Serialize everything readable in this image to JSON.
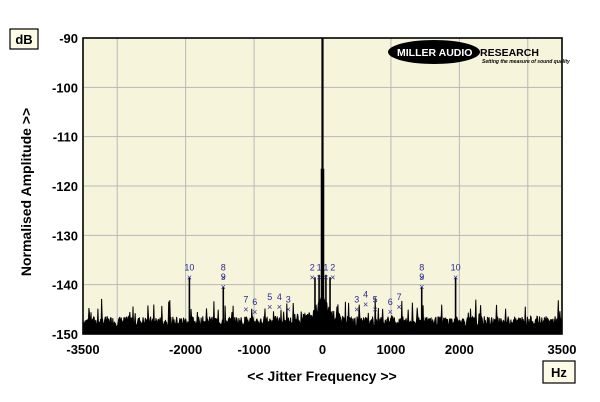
{
  "chart_data": {
    "type": "line",
    "title": "",
    "xlabel": "<< Jitter Frequency >>",
    "ylabel": "Normalised Amplitude >>",
    "y_unit": "dB",
    "x_unit": "Hz",
    "xlim": [
      -3500,
      3500
    ],
    "ylim": [
      -150,
      -90
    ],
    "x_ticks": [
      -3500,
      -2000,
      -1000,
      0,
      1000,
      2000,
      3500
    ],
    "x_tick_labels": [
      "-3500",
      "-2000",
      "-1000",
      "0",
      "1000",
      "2000",
      "3500"
    ],
    "y_ticks": [
      -90,
      -100,
      -110,
      -120,
      -130,
      -140,
      -150
    ],
    "y_tick_labels": [
      "-90",
      "-100",
      "-110",
      "-120",
      "-130",
      "-140",
      "-150"
    ],
    "grid": true,
    "background": "#f7f4dc",
    "trace_color": "#000000",
    "marker_color": "#2a2a9a",
    "noise_floor_db": -148,
    "peaks": [
      {
        "x": 0,
        "y": -90
      },
      {
        "x": -10,
        "y": -116.5
      },
      {
        "x": 10,
        "y": -116.5
      },
      {
        "x": -1945,
        "y": -138.5
      },
      {
        "x": 1945,
        "y": -138.5
      },
      {
        "x": -1450,
        "y": -140.5
      },
      {
        "x": 1450,
        "y": -140.5
      },
      {
        "x": -110,
        "y": -138.5
      },
      {
        "x": 110,
        "y": -138.5
      },
      {
        "x": -50,
        "y": -138
      },
      {
        "x": 50,
        "y": -138
      }
    ],
    "markers": [
      {
        "label": "10",
        "x": -1945,
        "y": -138.5
      },
      {
        "label": "8",
        "x": -1450,
        "y": -138.5
      },
      {
        "label": "9",
        "x": -1450,
        "y": -140.5
      },
      {
        "label": "7",
        "x": -1120,
        "y": -145
      },
      {
        "label": "6",
        "x": -990,
        "y": -145.5
      },
      {
        "label": "5",
        "x": -770,
        "y": -144.5
      },
      {
        "label": "4",
        "x": -630,
        "y": -144.5
      },
      {
        "label": "3",
        "x": -500,
        "y": -145
      },
      {
        "label": "2",
        "x": -150,
        "y": -138.5
      },
      {
        "label": "1",
        "x": -50,
        "y": -138.5
      },
      {
        "label": "1",
        "x": 50,
        "y": -138.5
      },
      {
        "label": "2",
        "x": 150,
        "y": -138.5
      },
      {
        "label": "3",
        "x": 500,
        "y": -145
      },
      {
        "label": "4",
        "x": 630,
        "y": -144
      },
      {
        "label": "5",
        "x": 770,
        "y": -145
      },
      {
        "label": "6",
        "x": 990,
        "y": -145.5
      },
      {
        "label": "7",
        "x": 1120,
        "y": -144.5
      },
      {
        "label": "8",
        "x": 1450,
        "y": -138.5
      },
      {
        "label": "9",
        "x": 1450,
        "y": -140.5
      },
      {
        "label": "10",
        "x": 1945,
        "y": -138.5
      }
    ]
  },
  "logo": {
    "main": "MILLER AUDIO",
    "tail": "RESEARCH",
    "tagline": "Setting the measure of sound quality"
  }
}
